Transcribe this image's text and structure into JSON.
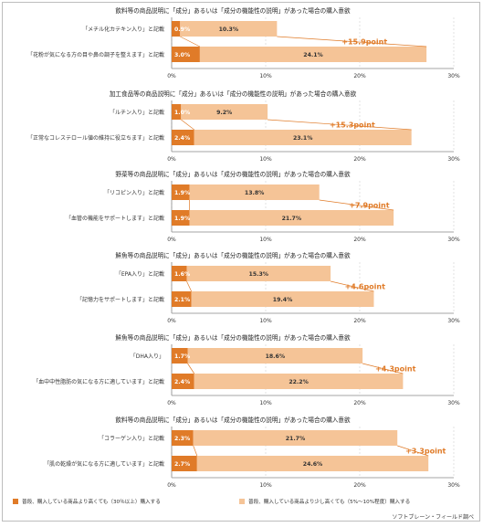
{
  "colors": {
    "dark": "#e07b28",
    "light": "#f5c497",
    "diff_text": "#e07b28",
    "grid": "#d0d0d0",
    "axis": "#888888"
  },
  "chart_data": [
    {
      "type": "bar",
      "title": "飲料等の商品説明に「成分」あるいは「成分の機能性の説明」があった場合の購入意欲",
      "categories": [
        "「メチル化カテキン入り」と記載",
        "「花粉が気になる方の目や鼻の調子を整えます」と記載"
      ],
      "series": [
        {
          "values": [
            0.9,
            3.0
          ]
        },
        {
          "values": [
            10.3,
            24.1
          ]
        }
      ],
      "data_labels": [
        "0.9%",
        "10.3%",
        "3.0%",
        "24.1%"
      ],
      "diff_label": "+15.9point",
      "x_ticks": [
        "0%",
        "10%",
        "20%",
        "30%"
      ],
      "xlim": [
        0,
        30
      ]
    },
    {
      "type": "bar",
      "title": "加工食品等の商品説明に「成分」あるいは「成分の機能性の説明」があった場合の購入意欲",
      "categories": [
        "「ルチン入り」と記載",
        "「正常なコレステロール値の維持に役立ちます」と記載"
      ],
      "series": [
        {
          "values": [
            1.0,
            2.4
          ]
        },
        {
          "values": [
            9.2,
            23.1
          ]
        }
      ],
      "data_labels": [
        "1.0%",
        "9.2%",
        "2.4%",
        "23.1%"
      ],
      "diff_label": "+15.3point",
      "x_ticks": [
        "0%",
        "10%",
        "20%",
        "30%"
      ],
      "xlim": [
        0,
        30
      ]
    },
    {
      "type": "bar",
      "title": "野菜等の商品説明に「成分」あるいは「成分の機能性の説明」があった場合の購入意欲",
      "categories": [
        "「リコピン入り」と記載",
        "「血管の機能をサポートします」と記載"
      ],
      "series": [
        {
          "values": [
            1.9,
            1.9
          ]
        },
        {
          "values": [
            13.8,
            21.7
          ]
        }
      ],
      "data_labels": [
        "1.9%",
        "13.8%",
        "1.9%",
        "21.7%"
      ],
      "diff_label": "+7.9point",
      "x_ticks": [
        "0%",
        "10%",
        "20%",
        "30%"
      ],
      "xlim": [
        0,
        30
      ]
    },
    {
      "type": "bar",
      "title": "鮮魚等の商品説明に「成分」あるいは「成分の機能性の説明」があった場合の購入意欲",
      "categories": [
        "「EPA入り」と記載",
        "「記憶力をサポートします」と記載"
      ],
      "series": [
        {
          "values": [
            1.6,
            2.1
          ]
        },
        {
          "values": [
            15.3,
            19.4
          ]
        }
      ],
      "data_labels": [
        "1.6%",
        "15.3%",
        "2.1%",
        "19.4%"
      ],
      "diff_label": "+4.6point",
      "x_ticks": [
        "0%",
        "10%",
        "20%",
        "30%"
      ],
      "xlim": [
        0,
        30
      ]
    },
    {
      "type": "bar",
      "title": "鮮魚等の商品説明に「成分」あるいは「成分の機能性の説明」があった場合の購入意欲",
      "categories": [
        "「DHA入り」",
        "「血中中性脂肪の気になる方に適しています」と記載"
      ],
      "series": [
        {
          "values": [
            1.7,
            2.4
          ]
        },
        {
          "values": [
            18.6,
            22.2
          ]
        }
      ],
      "data_labels": [
        "1.7%",
        "18.6%",
        "2.4%",
        "22.2%"
      ],
      "diff_label": "+4.3point",
      "x_ticks": [
        "0%",
        "10%",
        "20%",
        "30%"
      ],
      "xlim": [
        0,
        30
      ]
    },
    {
      "type": "bar",
      "title": "飲料等の商品説明に「成分」あるいは「成分の機能性の説明」があった場合の購入意欲",
      "categories": [
        "「コラーゲン入り」と記載",
        "「肌の乾燥が気になる方に適しています」と記載"
      ],
      "series": [
        {
          "values": [
            2.3,
            2.7
          ]
        },
        {
          "values": [
            21.7,
            24.6
          ]
        }
      ],
      "data_labels": [
        "2.3%",
        "21.7%",
        "2.7%",
        "24.6%"
      ],
      "diff_label": "+3.3point",
      "x_ticks": [
        "0%",
        "10%",
        "20%",
        "30%"
      ],
      "xlim": [
        0,
        30
      ]
    }
  ],
  "legend": {
    "item1": "普段、購入している商品より高くても（30％以上）購入する",
    "item2": "普段、購入している商品より少し高くても（5%～10%程度）購入する"
  },
  "source": "ソフトブレーン・フィールド調べ"
}
